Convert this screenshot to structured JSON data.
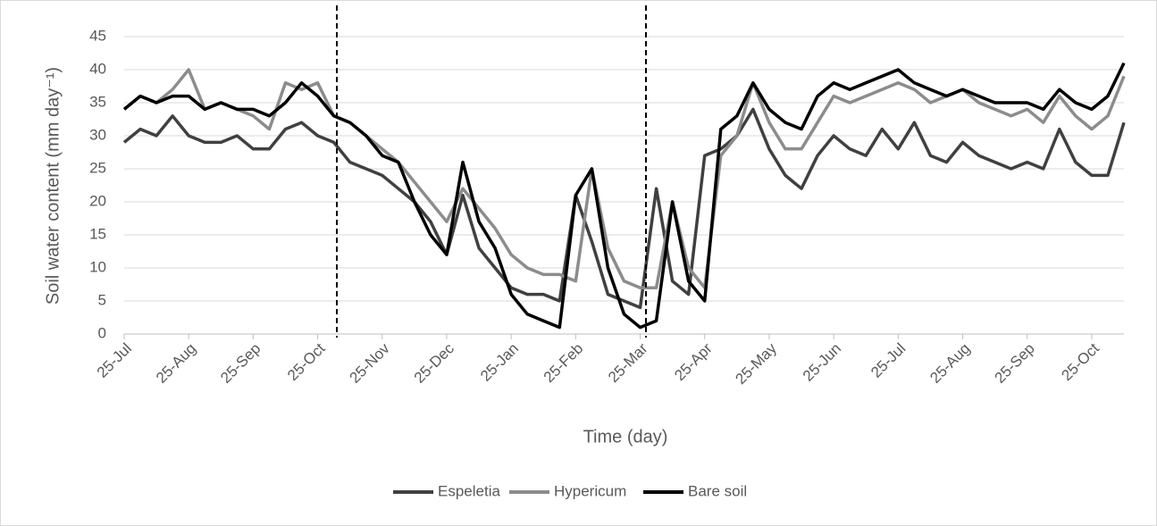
{
  "chart_data": {
    "type": "line",
    "x_label": "Time (day)",
    "y_label": "Soil water content (mm day⁻¹)",
    "categories": [
      "25-Jul",
      null,
      null,
      null,
      "25-Aug",
      null,
      null,
      null,
      "25-Sep",
      null,
      null,
      null,
      "25-Oct",
      null,
      null,
      null,
      "25-Nov",
      null,
      null,
      null,
      "25-Dec",
      null,
      null,
      null,
      "25-Jan",
      null,
      null,
      null,
      "25-Feb",
      null,
      null,
      null,
      "25-Mar",
      null,
      null,
      null,
      "25-Apr",
      null,
      null,
      null,
      "25-May",
      null,
      null,
      null,
      "25-Jun",
      null,
      null,
      null,
      "25-Jul",
      null,
      null,
      null,
      "25-Aug",
      null,
      null,
      null,
      "25-Sep",
      null,
      null,
      null,
      "25-Oct",
      null,
      null
    ],
    "series": [
      {
        "name": "Espeletia",
        "color": "#404040",
        "values": [
          29,
          31,
          30,
          33,
          30,
          29,
          29,
          30,
          28,
          28,
          31,
          32,
          30,
          29,
          26,
          25,
          24,
          22,
          20,
          17,
          12,
          21,
          13,
          10,
          7,
          6,
          6,
          5,
          21,
          14,
          6,
          5,
          4,
          22,
          8,
          6,
          27,
          28,
          30,
          34,
          28,
          24,
          22,
          27,
          30,
          28,
          27,
          31,
          28,
          32,
          27,
          26,
          29,
          27,
          26,
          25,
          26,
          25,
          31,
          26,
          24,
          24,
          32
        ]
      },
      {
        "name": "Hypericum",
        "color": "#8c8c8c",
        "values": [
          34,
          36,
          35,
          37,
          40,
          34,
          35,
          34,
          33,
          31,
          38,
          37,
          38,
          33,
          32,
          30,
          28,
          26,
          23,
          20,
          17,
          22,
          19,
          16,
          12,
          10,
          9,
          9,
          8,
          25,
          13,
          8,
          7,
          7,
          20,
          10,
          7,
          27,
          30,
          38,
          32,
          28,
          28,
          32,
          36,
          35,
          36,
          37,
          38,
          37,
          35,
          36,
          37,
          35,
          34,
          33,
          34,
          32,
          36,
          33,
          31,
          33,
          39
        ]
      },
      {
        "name": "Bare soil",
        "color": "#000000",
        "values": [
          34,
          36,
          35,
          36,
          36,
          34,
          35,
          34,
          34,
          33,
          35,
          38,
          36,
          33,
          32,
          30,
          27,
          26,
          20,
          15,
          12,
          26,
          17,
          13,
          6,
          3,
          2,
          1,
          21,
          25,
          10,
          3,
          1,
          2,
          20,
          8,
          5,
          31,
          33,
          38,
          34,
          32,
          31,
          36,
          38,
          37,
          38,
          39,
          40,
          38,
          37,
          36,
          37,
          36,
          35,
          35,
          35,
          34,
          37,
          35,
          34,
          36,
          41
        ]
      }
    ],
    "ylim": [
      0,
      45
    ],
    "yticks": [
      0,
      5,
      10,
      15,
      20,
      25,
      30,
      35,
      40,
      45
    ],
    "grid": true,
    "legend": "bottom"
  }
}
